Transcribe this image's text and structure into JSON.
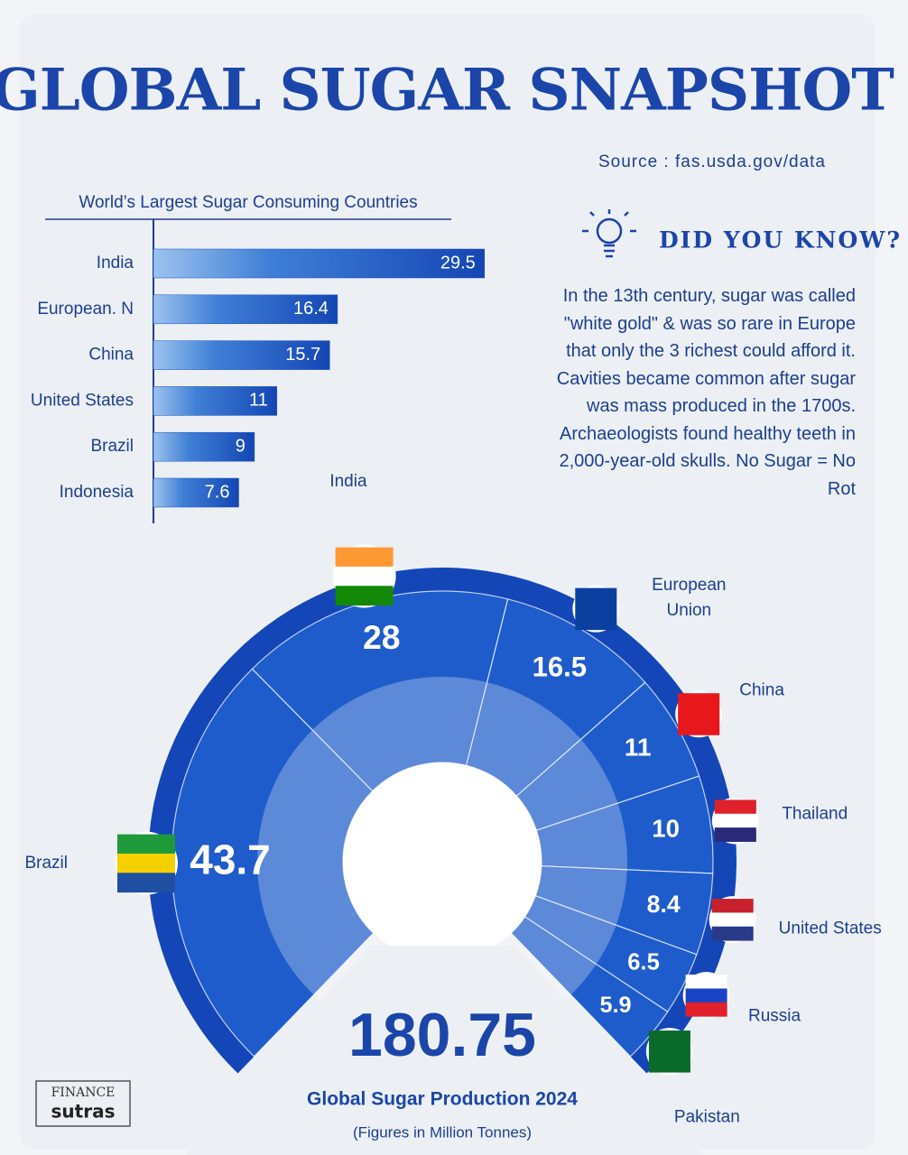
{
  "header": {
    "title": "GLOBAL SUGAR SNAPSHOT",
    "source": "Source : fas.usda.gov/data"
  },
  "did_you_know": {
    "heading": "DID YOU KNOW?",
    "text": "In the 13th century, sugar was called \"white gold\" & was so rare in Europe that only the 3 richest could afford it. Cavities became common after sugar was mass produced in the 1700s. Archaeologists found healthy teeth in 2,000-year-old skulls. No Sugar = No Rot"
  },
  "logo": {
    "line1": "FINANCE",
    "line2": "sutras"
  },
  "chart_data": [
    {
      "type": "bar",
      "orientation": "horizontal",
      "title": "World’s Largest Sugar Consuming Countries",
      "categories": [
        "India",
        "European. N",
        "China",
        "United States",
        "Brazil",
        "Indonesia"
      ],
      "values": [
        29.5,
        16.4,
        15.7,
        11,
        9,
        7.6
      ],
      "color": "#1a4fc0",
      "xlim": [
        0,
        30
      ]
    },
    {
      "type": "pie",
      "categories": [
        "Brazil",
        "India",
        "European Union",
        "China",
        "Thailand",
        "United States",
        "Russia",
        "Pakistan"
      ],
      "values": [
        43.7,
        28,
        16.5,
        11,
        10,
        8.4,
        6.5,
        5.9
      ],
      "color": "#1f5ccb",
      "total": 180.75,
      "title": "Global Sugar Production 2024",
      "subtitle": "(Figures in Million Tonnes)"
    }
  ]
}
